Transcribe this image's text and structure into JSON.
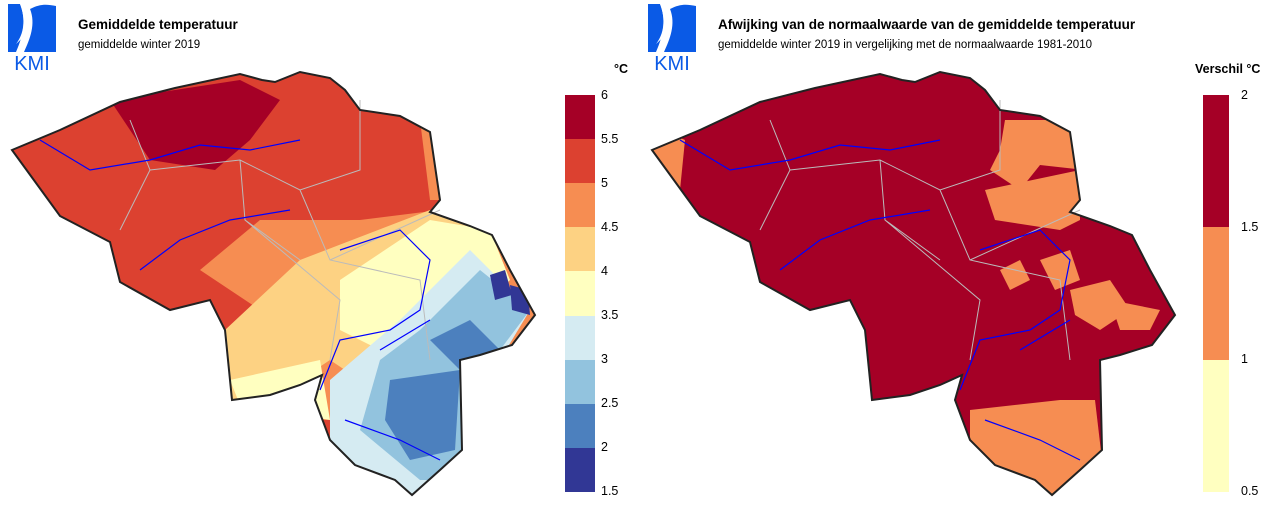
{
  "left": {
    "logo_text": "KMI",
    "title": "Gemiddelde temperatuur",
    "subtitle": "gemiddelde winter 2019",
    "legend_unit": "°C",
    "legend_ticks": [
      "6",
      "5.5",
      "5",
      "4.5",
      "4",
      "3.5",
      "3",
      "2.5",
      "2",
      "1.5"
    ],
    "legend_colors": [
      "#a50026",
      "#dc4130",
      "#f68d52",
      "#fdd283",
      "#ffffc0",
      "#d5ebf2",
      "#92c3de",
      "#4c80be",
      "#313795"
    ]
  },
  "right": {
    "logo_text": "KMI",
    "title": "Afwijking van de normaalwaarde van de gemiddelde temperatuur",
    "subtitle": "gemiddelde winter 2019 in vergelijking met de normaalwaarde 1981-2010",
    "legend_unit": "Verschil °C",
    "legend_ticks": [
      "2",
      "1.5",
      "1",
      "0.5"
    ],
    "legend_colors": [
      "#a50026",
      "#f68d52",
      "#ffffc0"
    ]
  },
  "colors": {
    "logo_blue": "#0a5ae6",
    "border": "#222222",
    "province_lines": "#bbbbbb",
    "rivers": "#0000ff"
  }
}
